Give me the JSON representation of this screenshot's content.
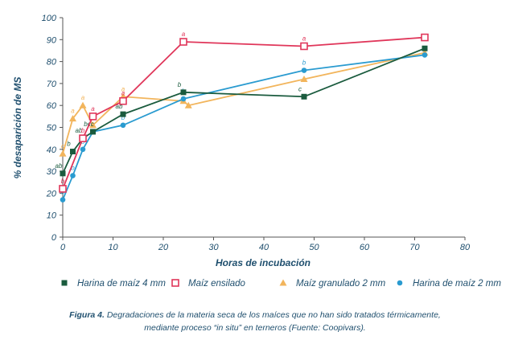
{
  "chart_data": {
    "type": "line",
    "title": "",
    "xlabel": "Horas de incubación",
    "ylabel": "% desaparición de MS",
    "xlim": [
      0,
      80
    ],
    "ylim": [
      0,
      100
    ],
    "x_ticks": [
      "0",
      "10",
      "20",
      "30",
      "40",
      "50",
      "60",
      "70",
      "80"
    ],
    "y_ticks": [
      "0",
      "10",
      "20",
      "30",
      "40",
      "50",
      "60",
      "70",
      "80",
      "90",
      "100"
    ],
    "legend_position": "bottom",
    "grid": false,
    "series": [
      {
        "name": "Harina de maíz 4 mm",
        "color": "#1a5b3e",
        "marker": "filled-square",
        "points": [
          [
            0,
            29
          ],
          [
            2,
            39
          ],
          [
            4,
            45
          ],
          [
            6,
            48
          ],
          [
            12,
            56
          ],
          [
            24,
            66
          ],
          [
            48,
            64
          ],
          [
            72,
            86
          ]
        ],
        "labels": [
          "ab",
          "b",
          "ab",
          "bcc",
          "ab",
          "b",
          "c",
          ""
        ]
      },
      {
        "name": "Maíz ensilado",
        "color": "#e0365a",
        "marker": "open-square",
        "points": [
          [
            0,
            22
          ],
          [
            4,
            45
          ],
          [
            6,
            55
          ],
          [
            12,
            62
          ],
          [
            24,
            89
          ],
          [
            48,
            87
          ],
          [
            72,
            91
          ]
        ],
        "labels": [
          "b",
          "b",
          "a",
          "a",
          "a",
          "a",
          ""
        ]
      },
      {
        "name": "Maíz granulado 2 mm",
        "color": "#f2b55c",
        "marker": "triangle",
        "points": [
          [
            0,
            38
          ],
          [
            2,
            54
          ],
          [
            4,
            60
          ],
          [
            6,
            51
          ],
          [
            12,
            64
          ],
          [
            24,
            62
          ],
          [
            25,
            60
          ],
          [
            48,
            72
          ],
          [
            72,
            84
          ]
        ],
        "labels": [
          "c",
          "a",
          "a",
          "",
          "a",
          "",
          "",
          "",
          ""
        ]
      },
      {
        "name": "Harina de maíz 2 mm",
        "color": "#2a9bd0",
        "marker": "circle",
        "points": [
          [
            0,
            17
          ],
          [
            2,
            28
          ],
          [
            4,
            40
          ],
          [
            6,
            48
          ],
          [
            12,
            51
          ],
          [
            24,
            63
          ],
          [
            48,
            76
          ],
          [
            72,
            83
          ]
        ],
        "labels": [
          "b",
          "b",
          "b",
          "",
          "b",
          "b",
          "b",
          ""
        ]
      }
    ]
  },
  "caption": {
    "figure_label": "Figura 4.",
    "line1": " Degradaciones de la materia seca de los maíces que no han sido tratados térmicamente,",
    "line2": "mediante proceso “in situ” en terneros (Fuente: Coopivars)."
  }
}
